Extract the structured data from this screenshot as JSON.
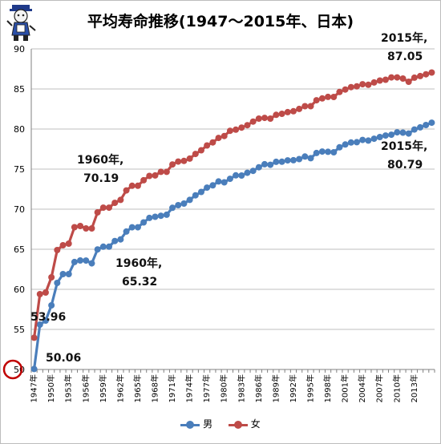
{
  "title": "平均寿命推移(1947～2015年、日本)",
  "logo_icon": "cartoon-mascot-logo",
  "colors": {
    "male": "#4a7ebb",
    "female": "#be4b48",
    "grid": "#bfbfbf",
    "circle": "#c00000"
  },
  "chart_data": {
    "type": "line",
    "title": "平均寿命推移(1947～2015年、日本)",
    "xlabel": "",
    "ylabel": "",
    "ylim": [
      50,
      90
    ],
    "y_ticks": [
      50,
      55,
      60,
      65,
      70,
      75,
      80,
      85,
      90
    ],
    "grid": true,
    "legend_position": "bottom",
    "x_start": 1947,
    "x_tick_labels": [
      "1947年",
      "1950年",
      "1953年",
      "1956年",
      "1959年",
      "1962年",
      "1965年",
      "1968年",
      "1971年",
      "1974年",
      "1977年",
      "1980年",
      "1983年",
      "1986年",
      "1989年",
      "1992年",
      "1995年",
      "1998年",
      "2001年",
      "2004年",
      "2007年",
      "2010年",
      "2013年"
    ],
    "series": [
      {
        "name": "男",
        "color": "#4a7ebb",
        "values": [
          50.06,
          55.6,
          56.1,
          58.0,
          60.8,
          61.9,
          61.9,
          63.41,
          63.6,
          63.59,
          63.24,
          64.98,
          65.32,
          65.32,
          66.03,
          66.23,
          67.21,
          67.74,
          67.74,
          68.35,
          68.91,
          69.05,
          69.18,
          69.31,
          70.17,
          70.5,
          70.7,
          71.16,
          71.73,
          72.15,
          72.69,
          72.97,
          73.46,
          73.35,
          73.79,
          74.22,
          74.2,
          74.54,
          74.78,
          75.23,
          75.61,
          75.54,
          75.91,
          75.92,
          76.09,
          76.11,
          76.25,
          76.57,
          76.36,
          77.01,
          77.19,
          77.16,
          77.1,
          77.72,
          78.07,
          78.32,
          78.36,
          78.64,
          78.56,
          78.79,
          79.0,
          79.19,
          79.29,
          79.59,
          79.55,
          79.44,
          79.94,
          80.21,
          80.5,
          80.79
        ]
      },
      {
        "name": "女",
        "color": "#be4b48",
        "values": [
          53.96,
          59.4,
          59.6,
          61.5,
          64.9,
          65.5,
          65.7,
          67.75,
          67.9,
          67.6,
          67.6,
          69.6,
          70.19,
          70.19,
          70.79,
          71.16,
          72.34,
          72.92,
          72.92,
          73.61,
          74.15,
          74.21,
          74.66,
          74.66,
          75.58,
          75.94,
          76.02,
          76.31,
          76.89,
          77.35,
          77.95,
          78.33,
          78.89,
          79.13,
          79.78,
          79.92,
          80.18,
          80.48,
          80.93,
          81.3,
          81.39,
          81.3,
          81.77,
          81.9,
          82.11,
          82.22,
          82.51,
          82.85,
          82.85,
          83.59,
          83.82,
          84.01,
          84.0,
          84.62,
          84.93,
          85.23,
          85.33,
          85.59,
          85.52,
          85.81,
          86.05,
          86.15,
          86.44,
          86.44,
          86.3,
          85.9,
          86.41,
          86.61,
          86.83,
          87.05
        ]
      }
    ]
  },
  "annotations": {
    "female_start_value": "53.96",
    "male_start_value": "50.06",
    "female_1960_year": "1960年,",
    "female_1960_value": "70.19",
    "male_1960_year": "1960年,",
    "male_1960_value": "65.32",
    "female_2015_year": "2015年,",
    "female_2015_value": "87.05",
    "male_2015_year": "2015年,",
    "male_2015_value": "80.79"
  }
}
